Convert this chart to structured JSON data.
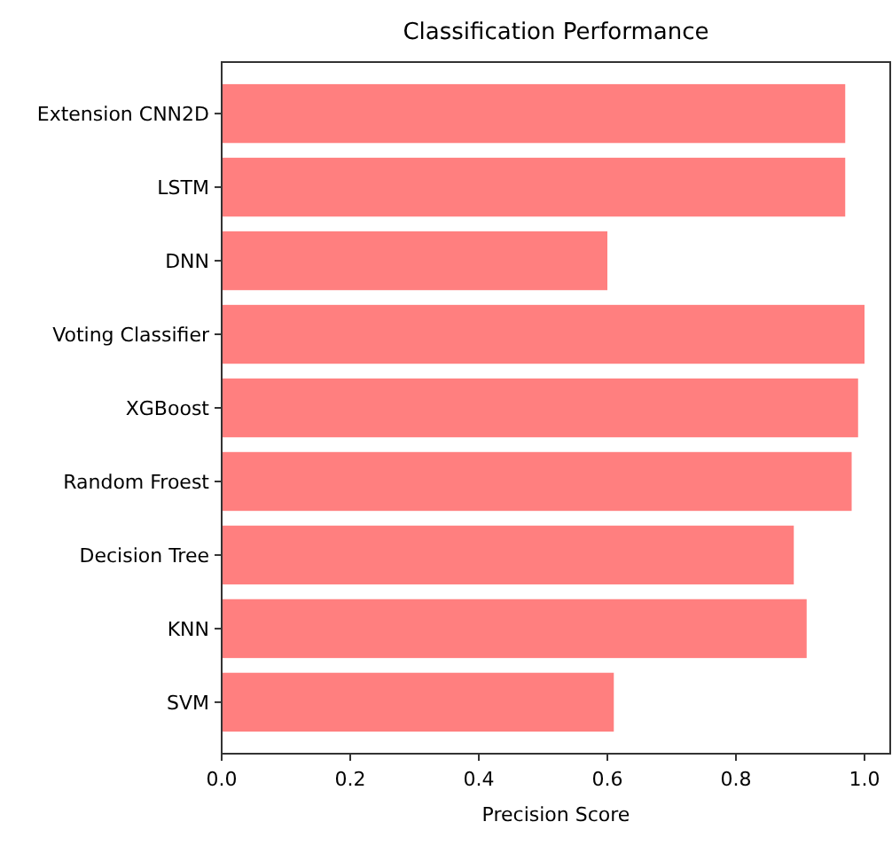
{
  "chart_data": {
    "type": "bar",
    "orientation": "horizontal",
    "title": "Classification Performance",
    "xlabel": "Precision Score",
    "categories": [
      "Extension CNN2D",
      "LSTM",
      "DNN",
      "Voting Classifier",
      "XGBoost",
      "Random Froest",
      "Decision Tree",
      "KNN",
      "SVM"
    ],
    "values": [
      0.97,
      0.97,
      0.6,
      1.0,
      0.99,
      0.98,
      0.89,
      0.91,
      0.61
    ],
    "color": "#ff7f7f",
    "xlim": [
      0,
      1.04
    ],
    "xticks": [
      {
        "value": 0,
        "label": "0.0"
      },
      0.2,
      0.4,
      0.6,
      0.8,
      {
        "value": 1,
        "label": "1.0"
      }
    ],
    "grid": false
  }
}
